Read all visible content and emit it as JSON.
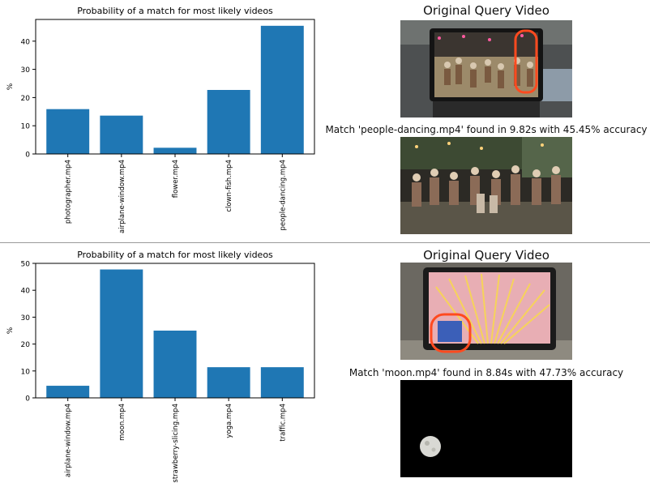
{
  "panels": [
    {
      "chart_data": {
        "type": "bar",
        "title": "Probability of a match for most likely videos",
        "ylabel": "%",
        "xlabel": "",
        "categories": [
          "photographer.mp4",
          "airplane-window.mp4",
          "flower.mp4",
          "clown-fish.mp4",
          "people-dancing.mp4"
        ],
        "values": [
          15.9,
          13.6,
          2.2,
          22.7,
          45.45
        ],
        "ylim": [
          0,
          47.7
        ],
        "yticks": [
          0,
          10,
          20,
          30,
          40
        ],
        "bar_color": "#1f77b4",
        "grid": false
      },
      "query_title": "Original Query Video",
      "match_title": "Match 'people-dancing.mp4' found in 9.82s with 45.45% accuracy",
      "query_image": "laptop-screen-crowd-dancing-photo",
      "match_image": "crowd-dancing-night-photo"
    },
    {
      "chart_data": {
        "type": "bar",
        "title": "Probability of a match for most likely videos",
        "ylabel": "%",
        "xlabel": "",
        "categories": [
          "airplane-window.mp4",
          "moon.mp4",
          "strawberry-slicing.mp4",
          "yoga.mp4",
          "traffic.mp4"
        ],
        "values": [
          4.5,
          47.73,
          25.0,
          11.4,
          11.4
        ],
        "ylim": [
          0,
          50
        ],
        "yticks": [
          0,
          10,
          20,
          30,
          40,
          50
        ],
        "bar_color": "#1f77b4",
        "grid": false
      },
      "query_title": "Original Query Video",
      "match_title": "Match 'moon.mp4' found in 8.84s with 47.73% accuracy",
      "query_image": "laptop-screen-golden-lines-photo",
      "match_image": "moon-in-dark-sky-photo"
    }
  ]
}
